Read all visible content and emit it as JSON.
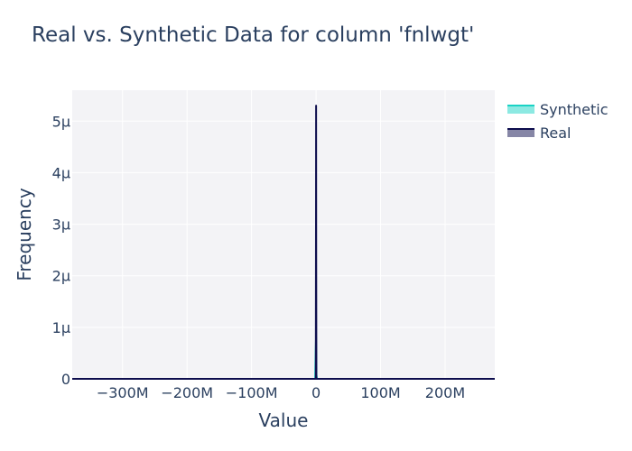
{
  "chart_data": {
    "type": "area",
    "title": "Real vs. Synthetic Data for column 'fnlwgt'",
    "xlabel": "Value",
    "ylabel": "Frequency",
    "xlim": [
      -378000000,
      277000000
    ],
    "ylim": [
      0,
      5.6e-06
    ],
    "x_ticks": [
      {
        "value": -300000000,
        "label": "−300M"
      },
      {
        "value": -200000000,
        "label": "−200M"
      },
      {
        "value": -100000000,
        "label": "−100M"
      },
      {
        "value": 0,
        "label": "0"
      },
      {
        "value": 100000000,
        "label": "100M"
      },
      {
        "value": 200000000,
        "label": "200M"
      }
    ],
    "y_ticks": [
      {
        "value": 0,
        "label": "0"
      },
      {
        "value": 1e-06,
        "label": "1μ"
      },
      {
        "value": 2e-06,
        "label": "2μ"
      },
      {
        "value": 3e-06,
        "label": "3μ"
      },
      {
        "value": 4e-06,
        "label": "4μ"
      },
      {
        "value": 5e-06,
        "label": "5μ"
      }
    ],
    "grid": true,
    "legend_position": "top-right",
    "series": [
      {
        "name": "Synthetic",
        "color": "#19d3c5",
        "fill": "rgba(25,211,197,0.5)",
        "x": [
          -378000000,
          -1500000,
          -600000,
          0,
          200000,
          600000,
          1500000,
          277000000
        ],
        "y": [
          0,
          0,
          5.5e-07,
          8e-07,
          3.5e-07,
          8e-08,
          0,
          0
        ]
      },
      {
        "name": "Real",
        "color": "#0d0d4d",
        "fill": "rgba(13,13,77,0.5)",
        "x": [
          -378000000,
          -400000,
          -100000,
          50000,
          200000,
          500000,
          277000000
        ],
        "y": [
          0,
          0,
          3.1e-06,
          5.3e-06,
          2.4e-06,
          0,
          0
        ]
      }
    ]
  }
}
